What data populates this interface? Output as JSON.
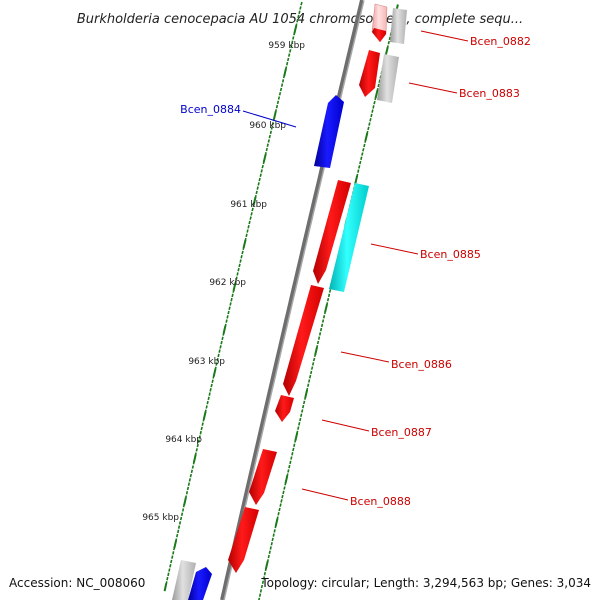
{
  "title": "Burkholderia cenocepacia AU 1054 chromosome 1, complete sequ...",
  "footer": {
    "accession": "Accession: NC_008060",
    "summary": "Topology: circular; Length: 3,294,563 bp; Genes: 3,034"
  },
  "ticks": [
    "959 kbp",
    "960 kbp",
    "961 kbp",
    "962 kbp",
    "963 kbp",
    "964 kbp",
    "965 kbp"
  ],
  "gene_labels": [
    {
      "text": "Bcen_0882",
      "color": "#cc0000"
    },
    {
      "text": "Bcen_0883",
      "color": "#cc0000"
    },
    {
      "text": "Bcen_0884",
      "color": "#0000cc"
    },
    {
      "text": "Bcen_0885",
      "color": "#cc0000"
    },
    {
      "text": "Bcen_0886",
      "color": "#cc0000"
    },
    {
      "text": "Bcen_0887",
      "color": "#cc0000"
    },
    {
      "text": "Bcen_0888",
      "color": "#cc0000"
    }
  ],
  "colors": {
    "backbone": "#7a7a7a",
    "tick": "#1a7a1a",
    "gene_red": "#ee0000",
    "gene_blue": "#0000ee",
    "gene_cyan": "#00e5e5",
    "gene_gray": "#bdbdbd",
    "gene_pink": "#ffb3b3"
  }
}
